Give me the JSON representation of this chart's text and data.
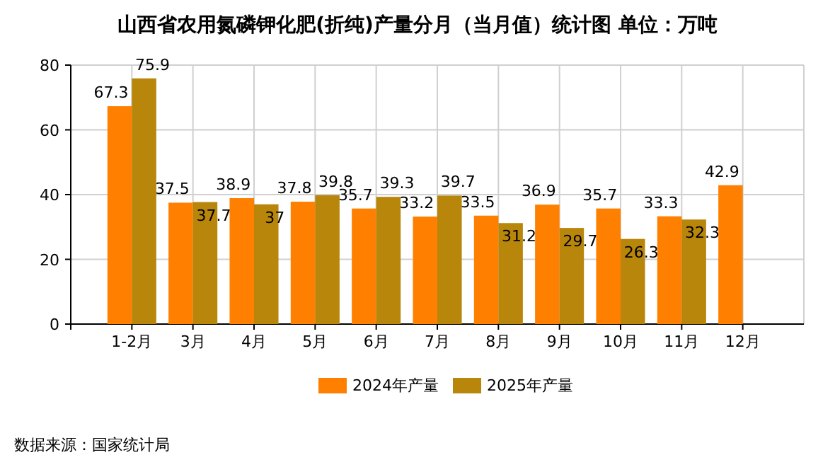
{
  "chart_data": {
    "type": "bar",
    "title": "山西省农用氮磷钾化肥(折纯)产量分月（当月值）统计图 单位：万吨",
    "categories": [
      "1-2月",
      "3月",
      "4月",
      "5月",
      "6月",
      "7月",
      "8月",
      "9月",
      "10月",
      "11月",
      "12月"
    ],
    "series": [
      {
        "name": "2024年产量",
        "color": "#ff8000",
        "values": [
          67.3,
          37.5,
          38.9,
          37.8,
          35.7,
          33.2,
          33.5,
          36.9,
          35.7,
          33.3,
          42.9
        ]
      },
      {
        "name": "2025年产量",
        "color": "#b8860b",
        "values": [
          75.9,
          37.7,
          37,
          39.8,
          39.3,
          39.7,
          31.2,
          29.7,
          26.3,
          32.3,
          null
        ]
      }
    ],
    "ylim": [
      0,
      80
    ],
    "yticks": [
      0,
      20,
      40,
      60,
      80
    ],
    "grid": true,
    "legend": "bottom",
    "data_labels": true,
    "annotations": [
      "数据来源：国家统计局"
    ]
  }
}
